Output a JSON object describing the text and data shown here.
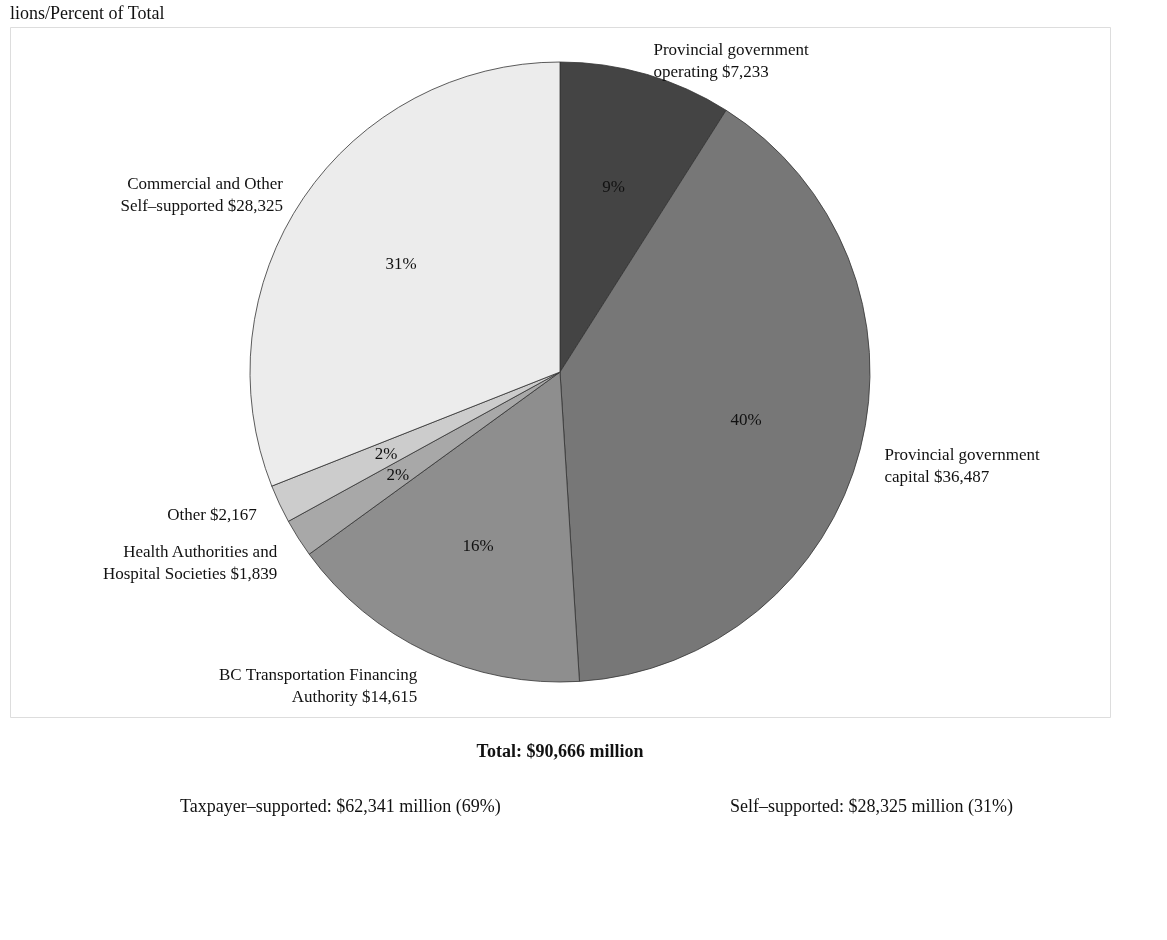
{
  "chart_data": {
    "type": "pie",
    "title": "lions/Percent of Total",
    "categories": [
      "Provincial government\noperating $7,233",
      "Provincial government\ncapital $36,487",
      "BC Transportation Financing\nAuthority $14,615",
      "Health Authorities and\nHospital Societies $1,839",
      "Other  $2,167",
      "Commercial and Other\nSelf–supported $28,325"
    ],
    "values": [
      9,
      40,
      16,
      2,
      2,
      31
    ],
    "value_labels": [
      "9%",
      "40%",
      "16%",
      "2%",
      "2%",
      "31%"
    ],
    "colors": [
      "#444444",
      "#777777",
      "#8e8e8e",
      "#a8a8a8",
      "#cccccc",
      "#ececec"
    ],
    "annotations": [
      "Total: $90,666 million",
      "Taxpayer–supported: $62,341 million (69%)",
      "Self–supported: $28,325 million (31%)"
    ],
    "legend": false
  }
}
